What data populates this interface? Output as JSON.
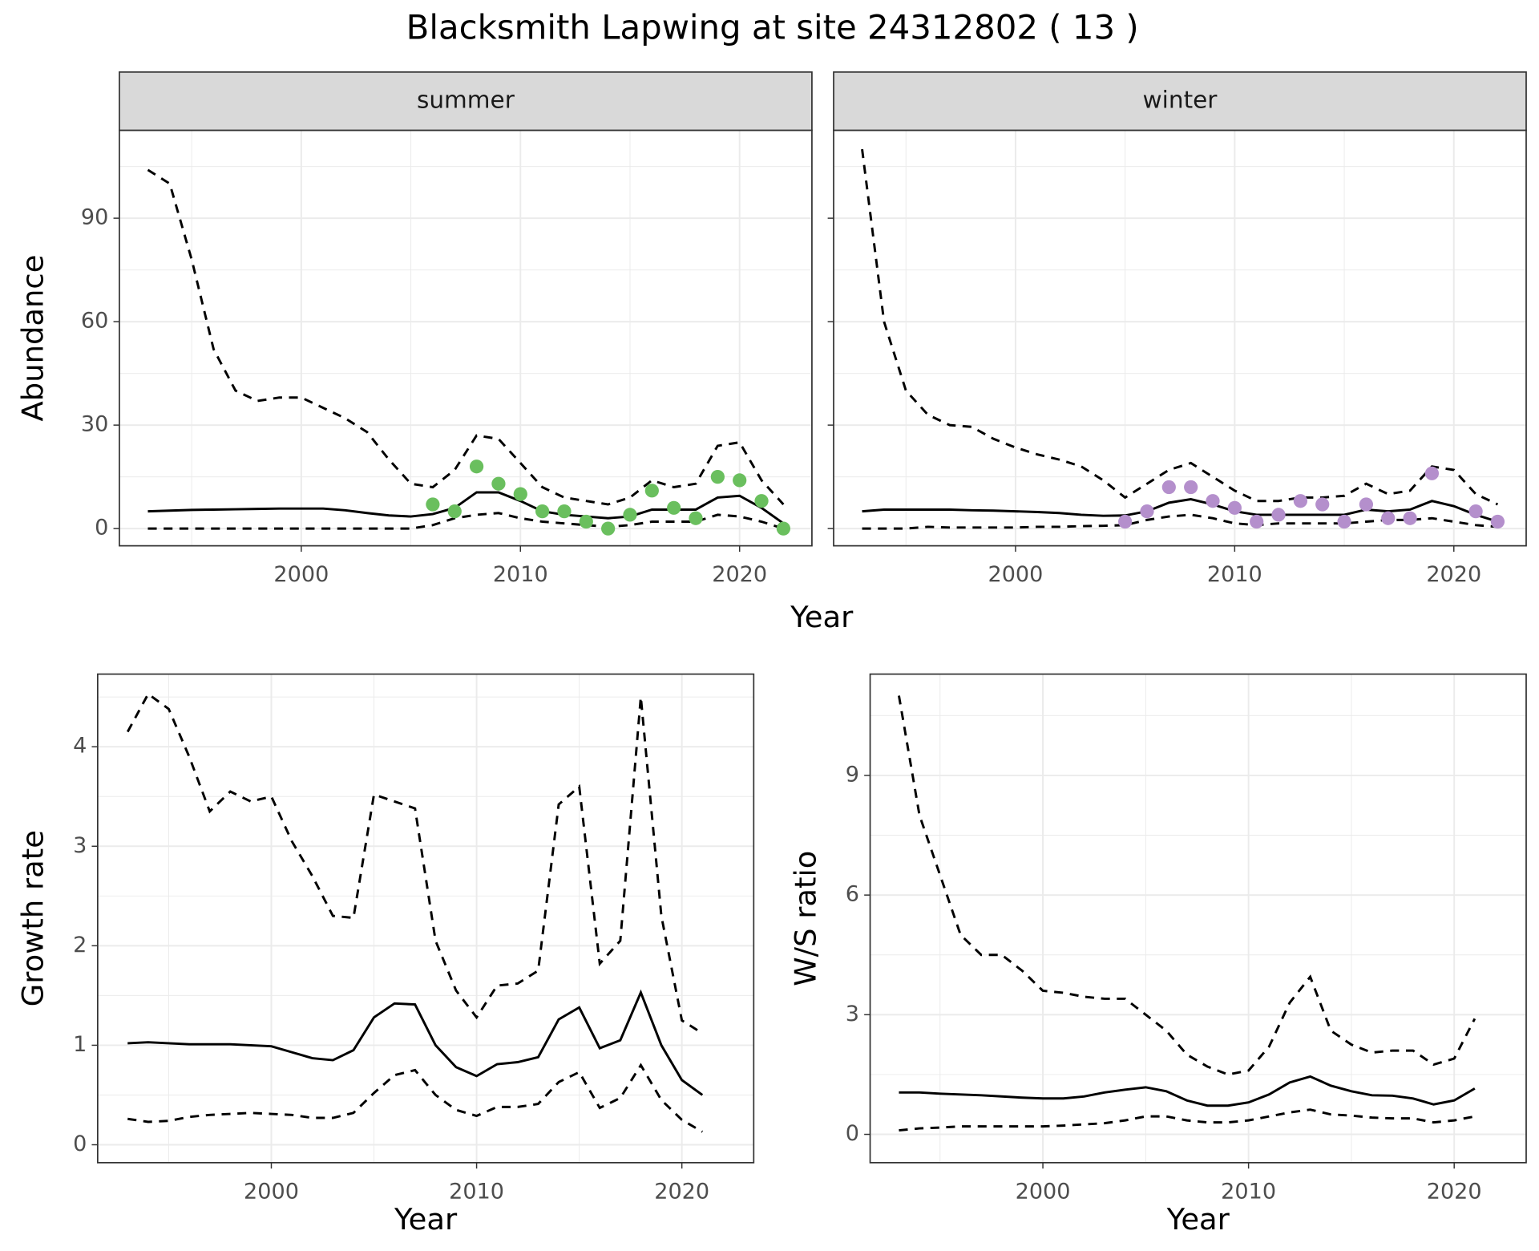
{
  "title": "Blacksmith Lapwing at site 24312802 ( 13 )",
  "top_x_label": "Year",
  "chart_data": [
    {
      "type": "line",
      "title": "summer",
      "y_label": "Abundance",
      "show_ytick_labels": true,
      "xlim": [
        1991.7,
        2023.3
      ],
      "ylim": [
        -5,
        115.5
      ],
      "xticks": [
        2000,
        2010,
        2020
      ],
      "yticks": [
        0,
        30,
        60,
        90
      ],
      "grid": true,
      "minor_grid": true,
      "x": [
        1993,
        1994,
        1995,
        1996,
        1997,
        1998,
        1999,
        2000,
        2001,
        2002,
        2003,
        2004,
        2005,
        2006,
        2007,
        2008,
        2009,
        2010,
        2011,
        2012,
        2013,
        2014,
        2015,
        2016,
        2017,
        2018,
        2019,
        2020,
        2021,
        2022
      ],
      "series": [
        {
          "color": "#000000",
          "dash": false,
          "values": [
            5,
            5.2,
            5.4,
            5.5,
            5.6,
            5.7,
            5.8,
            5.8,
            5.8,
            5.3,
            4.5,
            3.8,
            3.5,
            4.2,
            6,
            10.5,
            10.5,
            8,
            5,
            4,
            3.5,
            3,
            3.5,
            5.5,
            5.5,
            5.5,
            9,
            9.5,
            6,
            1.5
          ]
        },
        {
          "color": "#000000",
          "dash": true,
          "values": [
            104,
            100,
            78,
            52,
            40,
            37,
            38,
            38,
            35,
            32,
            28,
            20,
            13,
            12,
            17,
            27,
            26,
            19,
            12,
            9,
            8,
            7,
            9,
            14,
            12,
            13,
            24,
            25,
            14,
            7
          ]
        },
        {
          "color": "#000000",
          "dash": true,
          "values": [
            0,
            0,
            0,
            0,
            0,
            0,
            0,
            0,
            0,
            0,
            0,
            0,
            0,
            1,
            3,
            4,
            4.5,
            3,
            2,
            1.5,
            1,
            0.5,
            1,
            2,
            2,
            2,
            4,
            3.5,
            2,
            0
          ]
        }
      ],
      "points": {
        "color": "#6abf5e",
        "x": [
          2006,
          2007,
          2008,
          2009,
          2010,
          2011,
          2012,
          2013,
          2014,
          2015,
          2016,
          2017,
          2018,
          2019,
          2020,
          2021,
          2022
        ],
        "values": [
          7,
          5,
          18,
          13,
          10,
          5,
          5,
          2,
          0,
          4,
          11,
          6,
          3,
          15,
          14,
          8,
          0
        ]
      }
    },
    {
      "type": "line",
      "title": "winter",
      "show_ytick_labels": false,
      "xlim": [
        1991.7,
        2023.3
      ],
      "ylim": [
        -5,
        115.5
      ],
      "xticks": [
        2000,
        2010,
        2020
      ],
      "yticks": [
        0,
        30,
        60,
        90
      ],
      "grid": true,
      "minor_grid": true,
      "x": [
        1993,
        1994,
        1995,
        1996,
        1997,
        1998,
        1999,
        2000,
        2001,
        2002,
        2003,
        2004,
        2005,
        2006,
        2007,
        2008,
        2009,
        2010,
        2011,
        2012,
        2013,
        2014,
        2015,
        2016,
        2017,
        2018,
        2019,
        2020,
        2021,
        2022
      ],
      "series": [
        {
          "color": "#000000",
          "dash": false,
          "values": [
            5,
            5.5,
            5.5,
            5.5,
            5.5,
            5.3,
            5.2,
            5,
            4.8,
            4.5,
            4,
            3.7,
            3.8,
            5,
            7.5,
            8.5,
            7,
            5,
            4,
            4,
            4,
            4,
            4,
            5.5,
            5,
            5.5,
            8,
            6.5,
            4,
            2
          ]
        },
        {
          "color": "#000000",
          "dash": true,
          "values": [
            110,
            60,
            40,
            33,
            30,
            29.5,
            26,
            23.5,
            21.5,
            20,
            18,
            14,
            9,
            13,
            17,
            19,
            15,
            11,
            8,
            8,
            9,
            9,
            9.5,
            13,
            10,
            11,
            18,
            17,
            10,
            7
          ]
        },
        {
          "color": "#000000",
          "dash": true,
          "values": [
            0,
            0,
            0,
            0.5,
            0.3,
            0.3,
            0.3,
            0.3,
            0.5,
            0.5,
            0.7,
            0.8,
            1,
            2.5,
            3.5,
            4,
            3,
            1.5,
            1,
            1.5,
            1.5,
            1.5,
            1.5,
            2,
            2.5,
            2.5,
            3,
            2,
            1,
            0.5
          ]
        }
      ],
      "points": {
        "color": "#b48fcc",
        "x": [
          2005,
          2006,
          2007,
          2008,
          2009,
          2010,
          2011,
          2012,
          2013,
          2014,
          2015,
          2016,
          2017,
          2018,
          2019,
          2021,
          2022
        ],
        "values": [
          2,
          5,
          12,
          12,
          8,
          6,
          2,
          4,
          8,
          7,
          2,
          7,
          3,
          3,
          16,
          5,
          2
        ]
      }
    },
    {
      "type": "line",
      "x_label": "Year",
      "y_label": "Growth rate",
      "show_ytick_labels": true,
      "xlim": [
        1991.54,
        2023.5
      ],
      "ylim": [
        -0.18,
        4.73
      ],
      "xticks": [
        2000,
        2010,
        2020
      ],
      "yticks": [
        0,
        1,
        2,
        3,
        4
      ],
      "grid": true,
      "minor_grid": true,
      "x": [
        1993,
        1994,
        1995,
        1996,
        1997,
        1998,
        1999,
        2000,
        2001,
        2002,
        2003,
        2004,
        2005,
        2006,
        2007,
        2008,
        2009,
        2010,
        2011,
        2012,
        2013,
        2014,
        2015,
        2016,
        2017,
        2018,
        2019,
        2020,
        2021
      ],
      "series": [
        {
          "color": "#000000",
          "dash": false,
          "values": [
            1.02,
            1.03,
            1.02,
            1.01,
            1.01,
            1.01,
            1.0,
            0.99,
            0.93,
            0.87,
            0.85,
            0.95,
            1.28,
            1.42,
            1.41,
            1.0,
            0.78,
            0.69,
            0.81,
            0.83,
            0.88,
            1.26,
            1.38,
            0.97,
            1.05,
            1.53,
            1.0,
            0.65,
            0.5
          ]
        },
        {
          "color": "#000000",
          "dash": true,
          "values": [
            4.15,
            4.53,
            4.38,
            3.9,
            3.35,
            3.55,
            3.45,
            3.5,
            3.05,
            2.7,
            2.3,
            2.28,
            3.52,
            3.45,
            3.38,
            2.05,
            1.55,
            1.28,
            1.6,
            1.62,
            1.75,
            3.42,
            3.6,
            1.82,
            2.05,
            4.5,
            2.3,
            1.25,
            1.12
          ]
        },
        {
          "color": "#000000",
          "dash": true,
          "values": [
            0.26,
            0.23,
            0.24,
            0.28,
            0.3,
            0.31,
            0.32,
            0.31,
            0.3,
            0.27,
            0.27,
            0.32,
            0.52,
            0.7,
            0.75,
            0.5,
            0.35,
            0.29,
            0.38,
            0.38,
            0.41,
            0.63,
            0.73,
            0.37,
            0.47,
            0.8,
            0.45,
            0.25,
            0.13
          ]
        }
      ]
    },
    {
      "type": "line",
      "x_label": "Year",
      "y_label": "W/S ratio",
      "show_ytick_labels": true,
      "xlim": [
        1991.6,
        2023.5
      ],
      "ylim": [
        -0.71,
        11.54
      ],
      "xticks": [
        2000,
        2010,
        2020
      ],
      "yticks": [
        0,
        3,
        6,
        9
      ],
      "grid": true,
      "minor_grid": true,
      "x": [
        1993,
        1994,
        1995,
        1996,
        1997,
        1998,
        1999,
        2000,
        2001,
        2002,
        2003,
        2004,
        2005,
        2006,
        2007,
        2008,
        2009,
        2010,
        2011,
        2012,
        2013,
        2014,
        2015,
        2016,
        2017,
        2018,
        2019,
        2020,
        2021
      ],
      "series": [
        {
          "color": "#000000",
          "dash": false,
          "values": [
            1.05,
            1.05,
            1.02,
            1.0,
            0.98,
            0.95,
            0.92,
            0.9,
            0.9,
            0.95,
            1.05,
            1.12,
            1.18,
            1.08,
            0.85,
            0.72,
            0.72,
            0.8,
            1.0,
            1.3,
            1.45,
            1.22,
            1.08,
            0.98,
            0.97,
            0.9,
            0.75,
            0.85,
            1.15
          ]
        },
        {
          "color": "#000000",
          "dash": true,
          "values": [
            11,
            8,
            6.5,
            5,
            4.5,
            4.5,
            4.1,
            3.6,
            3.55,
            3.45,
            3.4,
            3.4,
            3.0,
            2.6,
            2.0,
            1.7,
            1.5,
            1.6,
            2.2,
            3.3,
            3.95,
            2.6,
            2.25,
            2.05,
            2.1,
            2.1,
            1.75,
            1.9,
            2.9
          ]
        },
        {
          "color": "#000000",
          "dash": true,
          "values": [
            0.1,
            0.15,
            0.17,
            0.2,
            0.2,
            0.2,
            0.2,
            0.2,
            0.22,
            0.25,
            0.28,
            0.35,
            0.45,
            0.45,
            0.35,
            0.3,
            0.3,
            0.35,
            0.45,
            0.55,
            0.62,
            0.5,
            0.47,
            0.42,
            0.4,
            0.4,
            0.3,
            0.35,
            0.45
          ]
        }
      ]
    }
  ]
}
